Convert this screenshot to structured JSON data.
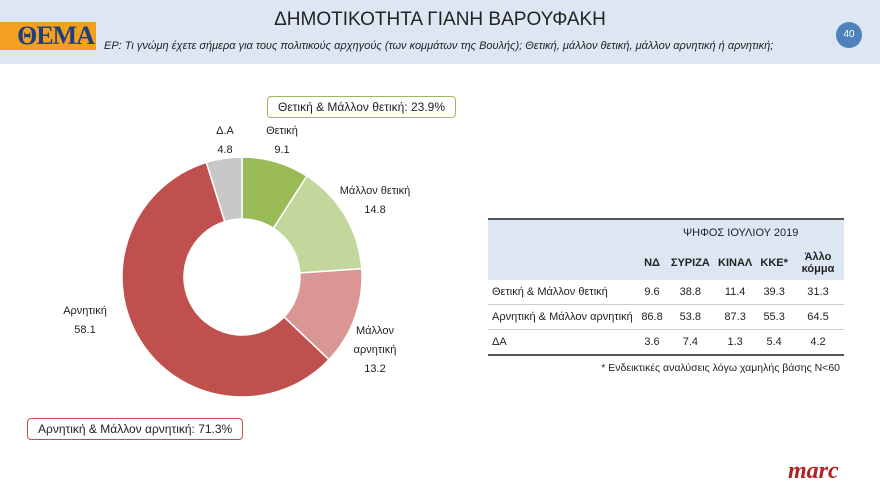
{
  "header": {
    "logo": "ΘΕΜΑ",
    "title": "ΔΗΜΟΤΙΚΟΤΗΤΑ ΓΙΑΝΗ ΒΑΡΟΥΦΑΚΗ",
    "question": "ΕΡ: Τι γνώμη έχετε σήμερα για τους πολιτικούς αρχηγούς (των κομμάτων της Βουλής); Θετική, μάλλον θετική, μάλλον αρνητική ή αρνητική;",
    "page_number": "40"
  },
  "chart_data": {
    "type": "pie",
    "donut": true,
    "categories": [
      "Θετική",
      "Μάλλον θετική",
      "Μάλλον αρνητική",
      "Αρνητική",
      "Δ.Α"
    ],
    "values": [
      9.1,
      14.8,
      13.2,
      58.1,
      4.8
    ],
    "colors": [
      "#9bbb59",
      "#c3d69b",
      "#d99694",
      "#c0504d",
      "#c8c8c8"
    ],
    "values_text": [
      "9.1",
      "14.8",
      "13.2",
      "58.1",
      "4.8"
    ],
    "annotations": {
      "positive": "Θετική & Μάλλον θετική: 23.9%",
      "negative": "Αρνητική & Μάλλον αρνητική: 71.3%"
    }
  },
  "table": {
    "group_header": "ΨΗΦΟΣ ΙΟΥΛΙΟΥ 2019",
    "columns": [
      "ΝΔ",
      "ΣΥΡΙΖΑ",
      "ΚΙΝΑΛ",
      "ΚΚΕ*",
      "Άλλο κόμμα"
    ],
    "rows": [
      {
        "label": "Θετική & Μάλλον θετική",
        "values": [
          "9.6",
          "38.8",
          "11.4",
          "39.3",
          "31.3"
        ]
      },
      {
        "label": "Αρνητική & Μάλλον αρνητική",
        "values": [
          "86.8",
          "53.8",
          "87.3",
          "55.3",
          "64.5"
        ]
      },
      {
        "label": "ΔΑ",
        "values": [
          "3.6",
          "7.4",
          "1.3",
          "5.4",
          "4.2"
        ]
      }
    ],
    "note": "* Ενδεικτικές αναλύσεις λόγω χαμηλής βάσης Ν<60"
  },
  "footer": {
    "brand": "marc"
  }
}
